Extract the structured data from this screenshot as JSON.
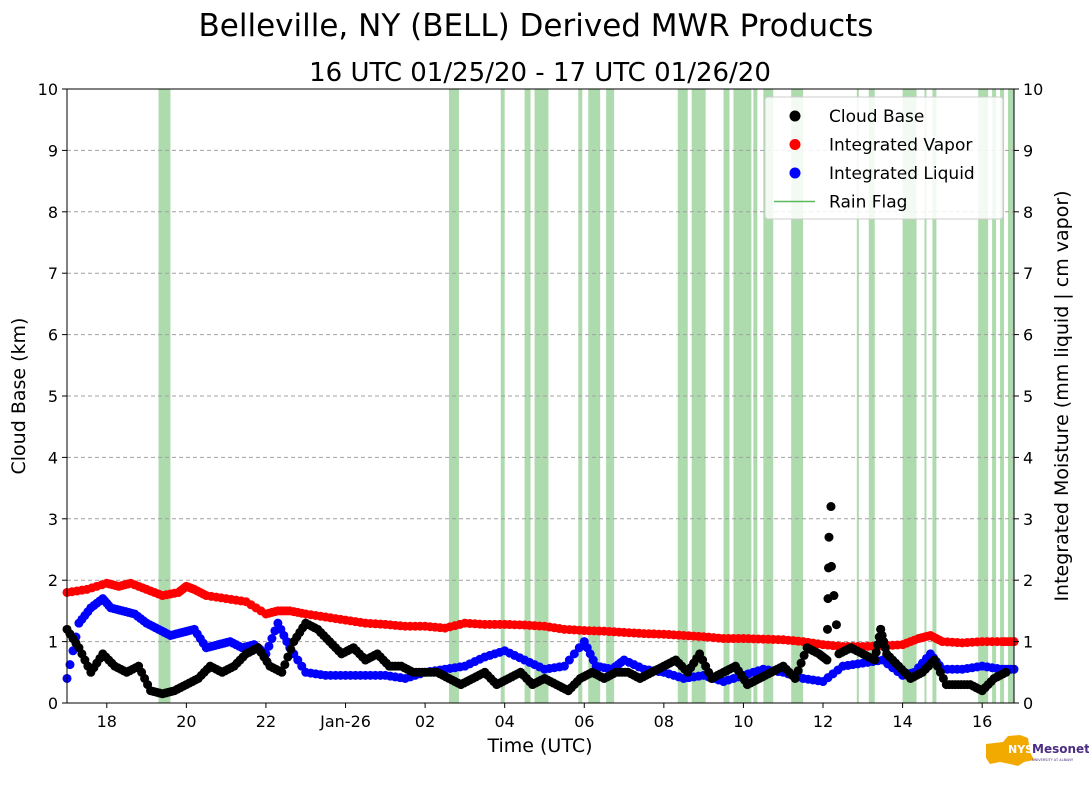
{
  "chart_data": {
    "type": "scatter",
    "title": "Belleville, NY (BELL) Derived MWR Products",
    "subtitle": "16 UTC 01/25/20 - 17 UTC 01/26/20",
    "xlabel": "Time (UTC)",
    "ylabel": "Cloud Base (km)",
    "ylabel_right": "Integrated Moisture (mm liquid | cm vapor)",
    "xlim": [
      17.0,
      40.8
    ],
    "ylim": [
      0,
      10
    ],
    "grid": true,
    "legend_position": "top-right",
    "x_ticks": [
      {
        "x": 18,
        "label": "18"
      },
      {
        "x": 20,
        "label": "20"
      },
      {
        "x": 22,
        "label": "22"
      },
      {
        "x": 24,
        "label": "Jan-26"
      },
      {
        "x": 26,
        "label": "02"
      },
      {
        "x": 28,
        "label": "04"
      },
      {
        "x": 30,
        "label": "06"
      },
      {
        "x": 32,
        "label": "08"
      },
      {
        "x": 34,
        "label": "10"
      },
      {
        "x": 36,
        "label": "12"
      },
      {
        "x": 38,
        "label": "14"
      },
      {
        "x": 40,
        "label": "16"
      }
    ],
    "y_ticks": [
      "0",
      "1",
      "2",
      "3",
      "4",
      "5",
      "6",
      "7",
      "8",
      "9",
      "10"
    ],
    "legend": [
      {
        "label": "Cloud Base",
        "color": "#000000",
        "kind": "dot"
      },
      {
        "label": "Integrated Vapor",
        "color": "#ff0000",
        "kind": "dot"
      },
      {
        "label": "Integrated Liquid",
        "color": "#0000ff",
        "kind": "dot"
      },
      {
        "label": "Rain Flag",
        "color": "#5cb85c",
        "kind": "line"
      }
    ],
    "series": [
      {
        "name": "Integrated Vapor",
        "color": "#ff0000",
        "x": [
          17.0,
          17.5,
          18.0,
          18.3,
          18.6,
          19.0,
          19.4,
          19.8,
          20.0,
          20.2,
          20.5,
          21.0,
          21.5,
          22.0,
          22.3,
          22.6,
          23.0,
          23.5,
          24.0,
          24.5,
          25.0,
          25.5,
          26.0,
          26.5,
          27.0,
          27.5,
          28.0,
          28.5,
          29.0,
          29.5,
          30.0,
          30.5,
          31.0,
          31.5,
          32.0,
          32.5,
          33.0,
          33.5,
          34.0,
          34.5,
          35.0,
          35.5,
          36.0,
          36.5,
          37.0,
          37.5,
          38.0,
          38.4,
          38.7,
          39.0,
          39.5,
          40.0,
          40.5,
          40.8
        ],
        "values": [
          1.8,
          1.85,
          1.95,
          1.9,
          1.95,
          1.85,
          1.75,
          1.8,
          1.9,
          1.85,
          1.75,
          1.7,
          1.65,
          1.45,
          1.5,
          1.5,
          1.45,
          1.4,
          1.35,
          1.3,
          1.28,
          1.25,
          1.25,
          1.22,
          1.3,
          1.28,
          1.28,
          1.27,
          1.25,
          1.2,
          1.18,
          1.17,
          1.15,
          1.13,
          1.12,
          1.1,
          1.08,
          1.05,
          1.05,
          1.04,
          1.03,
          1.0,
          0.95,
          0.92,
          0.92,
          0.93,
          0.95,
          1.05,
          1.1,
          1.0,
          0.98,
          1.0,
          1.0,
          1.0
        ]
      },
      {
        "name": "Integrated Liquid",
        "color": "#0000ff",
        "x": [
          17.0,
          17.3,
          17.6,
          17.9,
          18.1,
          18.4,
          18.7,
          19.0,
          19.3,
          19.6,
          19.9,
          20.2,
          20.5,
          20.8,
          21.1,
          21.4,
          21.7,
          22.0,
          22.3,
          22.6,
          23.0,
          23.5,
          24.0,
          24.5,
          25.0,
          25.5,
          26.0,
          26.5,
          27.0,
          27.5,
          28.0,
          28.5,
          29.0,
          29.5,
          30.0,
          30.3,
          30.7,
          31.0,
          31.5,
          32.0,
          32.5,
          33.0,
          33.5,
          34.0,
          34.5,
          35.0,
          35.5,
          36.0,
          36.5,
          37.0,
          37.5,
          38.0,
          38.3,
          38.7,
          39.0,
          39.5,
          40.0,
          40.5,
          40.8
        ],
        "values": [
          0.4,
          1.3,
          1.55,
          1.7,
          1.55,
          1.5,
          1.45,
          1.3,
          1.2,
          1.1,
          1.15,
          1.2,
          0.9,
          0.95,
          1.0,
          0.9,
          0.95,
          0.8,
          1.3,
          0.9,
          0.5,
          0.45,
          0.45,
          0.45,
          0.45,
          0.4,
          0.5,
          0.55,
          0.6,
          0.75,
          0.85,
          0.7,
          0.55,
          0.6,
          1.0,
          0.6,
          0.55,
          0.7,
          0.55,
          0.5,
          0.4,
          0.45,
          0.35,
          0.45,
          0.55,
          0.5,
          0.4,
          0.35,
          0.6,
          0.65,
          0.7,
          0.45,
          0.5,
          0.8,
          0.55,
          0.55,
          0.6,
          0.55,
          0.55
        ]
      },
      {
        "name": "Cloud Base",
        "color": "#000000",
        "x": [
          17.0,
          17.3,
          17.6,
          17.9,
          18.2,
          18.5,
          18.8,
          19.1,
          19.4,
          19.7,
          20.0,
          20.3,
          20.6,
          20.9,
          21.2,
          21.5,
          21.8,
          22.1,
          22.4,
          22.7,
          23.0,
          23.3,
          23.6,
          23.9,
          24.2,
          24.5,
          24.8,
          25.1,
          25.4,
          25.7,
          26.0,
          26.3,
          26.6,
          26.9,
          27.2,
          27.5,
          27.8,
          28.1,
          28.4,
          28.7,
          29.0,
          29.3,
          29.6,
          29.9,
          30.2,
          30.5,
          30.8,
          31.1,
          31.4,
          31.7,
          32.0,
          32.3,
          32.6,
          32.9,
          33.2,
          33.5,
          33.8,
          34.1,
          34.4,
          34.7,
          35.0,
          35.3,
          35.6,
          35.9,
          36.1,
          36.15,
          36.4,
          36.7,
          37.0,
          37.3,
          37.45,
          37.6,
          37.9,
          38.2,
          38.5,
          38.8,
          39.1,
          39.4,
          39.7,
          40.0,
          40.3,
          40.6
        ],
        "values": [
          1.2,
          0.9,
          0.5,
          0.8,
          0.6,
          0.5,
          0.6,
          0.2,
          0.15,
          0.2,
          0.3,
          0.4,
          0.6,
          0.5,
          0.6,
          0.8,
          0.9,
          0.6,
          0.5,
          1.0,
          1.3,
          1.2,
          1.0,
          0.8,
          0.9,
          0.7,
          0.8,
          0.6,
          0.6,
          0.5,
          0.5,
          0.5,
          0.4,
          0.3,
          0.4,
          0.5,
          0.3,
          0.4,
          0.5,
          0.3,
          0.4,
          0.3,
          0.2,
          0.4,
          0.5,
          0.4,
          0.5,
          0.5,
          0.4,
          0.5,
          0.6,
          0.7,
          0.5,
          0.8,
          0.4,
          0.5,
          0.6,
          0.3,
          0.4,
          0.5,
          0.6,
          0.4,
          0.9,
          0.8,
          0.7,
          2.7,
          0.8,
          0.9,
          0.8,
          0.7,
          1.2,
          0.8,
          0.6,
          0.4,
          0.5,
          0.7,
          0.3,
          0.3,
          0.3,
          0.2,
          0.4,
          0.5
        ]
      },
      {
        "name": "Cloud Base (outliers)",
        "color": "#000000",
        "x": [
          36.2,
          37.45
        ],
        "values": [
          3.2,
          1.2
        ]
      }
    ],
    "rain_flag_intervals": [
      [
        19.3,
        19.6
      ],
      [
        26.6,
        26.85
      ],
      [
        27.9,
        28.0
      ],
      [
        28.5,
        28.65
      ],
      [
        28.75,
        29.1
      ],
      [
        29.85,
        29.95
      ],
      [
        30.1,
        30.4
      ],
      [
        30.55,
        30.75
      ],
      [
        32.35,
        32.6
      ],
      [
        32.7,
        33.05
      ],
      [
        33.5,
        33.65
      ],
      [
        33.75,
        34.2
      ],
      [
        34.25,
        34.35
      ],
      [
        34.5,
        34.75
      ],
      [
        35.2,
        35.5
      ],
      [
        36.85,
        36.9
      ],
      [
        37.15,
        37.3
      ],
      [
        38.0,
        38.35
      ],
      [
        38.55,
        38.6
      ],
      [
        38.75,
        38.85
      ],
      [
        39.9,
        40.15
      ],
      [
        40.25,
        40.35
      ],
      [
        40.45,
        40.55
      ],
      [
        40.65,
        40.8
      ]
    ]
  },
  "logo": {
    "line1": "NYS",
    "line2": "Mesonet",
    "line3": "UNIVERSITY AT ALBANY"
  }
}
